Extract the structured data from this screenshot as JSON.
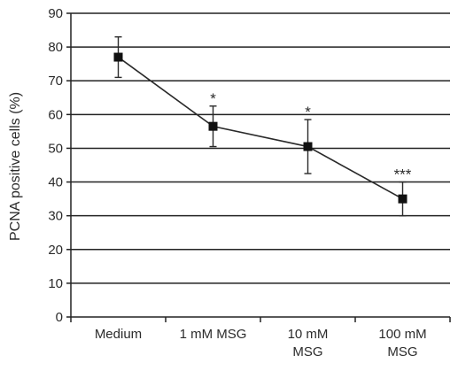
{
  "chart_data": {
    "type": "line",
    "title": "",
    "xlabel": "",
    "ylabel": "PCNA positive cells (%)",
    "ylim": [
      0,
      90
    ],
    "yticks": [
      0,
      10,
      20,
      30,
      40,
      50,
      60,
      70,
      80,
      90
    ],
    "grid": "horizontal",
    "categories": [
      [
        "Medium"
      ],
      [
        "1 mM MSG"
      ],
      [
        "10 mM",
        "MSG"
      ],
      [
        "100 mM",
        "MSG"
      ]
    ],
    "series": [
      {
        "values": [
          77,
          56.5,
          50.5,
          35
        ],
        "error": [
          6,
          6,
          8,
          5
        ],
        "annotations": [
          "",
          "*",
          "*",
          "***"
        ]
      }
    ],
    "colors": {
      "line": "#2a2a2a",
      "grid": "#222222",
      "marker": "#111111"
    }
  }
}
